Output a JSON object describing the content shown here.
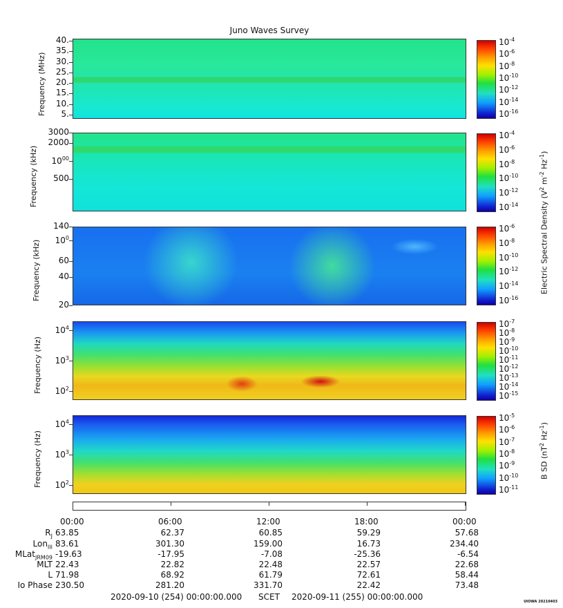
{
  "chart_data": {
    "type": "heatmap",
    "title": "Juno Waves Survey",
    "panels": [
      {
        "id": "p1",
        "ylabel": "Frequency (MHz)",
        "yscale": "linear",
        "ylim": [
          3,
          41
        ],
        "yticks": [
          "40.",
          "35.",
          "30.",
          "25.",
          "20.",
          "15.",
          "10.",
          "5."
        ],
        "ytick_values": [
          40,
          35,
          30,
          25,
          20,
          15,
          10,
          5
        ],
        "colorbar": {
          "label": "",
          "ticks": [
            "10-4",
            "10-6",
            "10-8",
            "10-10",
            "10-12",
            "10-14",
            "10-16"
          ],
          "exponents": [
            -4,
            -6,
            -8,
            -10,
            -12,
            -14,
            -16
          ]
        }
      },
      {
        "id": "p2",
        "ylabel": "Frequency (kHz)",
        "yscale": "log",
        "ylim": [
          140,
          3000
        ],
        "yticks": [
          "3000",
          "2000",
          "1000",
          "500"
        ],
        "ytick_values": [
          3000,
          2000,
          1000,
          500
        ],
        "colorbar": {
          "label": "Electric Spectral Density (V2 m-2 Hz-1)",
          "ticks": [
            "10-4",
            "10-6",
            "10-8",
            "10-10",
            "10-12",
            "10-14"
          ],
          "exponents": [
            -4,
            -6,
            -8,
            -10,
            -12,
            -14
          ]
        }
      },
      {
        "id": "p3",
        "ylabel": "Frequency (kHz)",
        "yscale": "log",
        "ylim": [
          20,
          140
        ],
        "yticks": [
          "140",
          "100",
          "60",
          "40",
          "20"
        ],
        "ytick_values": [
          140,
          100,
          60,
          40,
          20
        ],
        "colorbar": {
          "label": "",
          "ticks": [
            "10-6",
            "10-8",
            "10-10",
            "10-12",
            "10-14",
            "10-16"
          ],
          "exponents": [
            -6,
            -8,
            -10,
            -12,
            -14,
            -16
          ]
        }
      },
      {
        "id": "p4",
        "ylabel": "Frequency (Hz)",
        "yscale": "log",
        "ylim": [
          50,
          20000
        ],
        "yticks": [
          "104",
          "103",
          "102"
        ],
        "ytick_values": [
          10000,
          1000,
          100
        ],
        "colorbar": {
          "label": "",
          "ticks": [
            "10-7",
            "10-8",
            "10-9",
            "10-10",
            "10-11",
            "10-12",
            "10-13",
            "10-14",
            "10-15"
          ],
          "exponents": [
            -7,
            -8,
            -9,
            -10,
            -11,
            -12,
            -13,
            -14,
            -15
          ]
        }
      },
      {
        "id": "p5",
        "ylabel": "Frequency (Hz)",
        "yscale": "log",
        "ylim": [
          50,
          20000
        ],
        "yticks": [
          "104",
          "103",
          "102"
        ],
        "ytick_values": [
          10000,
          1000,
          100
        ],
        "colorbar": {
          "label": "B SD (nT2 Hz-1)",
          "ticks": [
            "10-5",
            "10-6",
            "10-7",
            "10-8",
            "10-9",
            "10-10",
            "10-11"
          ],
          "exponents": [
            -5,
            -6,
            -7,
            -8,
            -9,
            -10,
            -11
          ]
        }
      }
    ],
    "x_ticks": [
      "00:00",
      "06:00",
      "12:00",
      "18:00",
      "00:00"
    ],
    "ephemeris": {
      "rows": [
        {
          "label": "Rj",
          "values": [
            "63.85",
            "62.37",
            "60.85",
            "59.29",
            "57.68"
          ]
        },
        {
          "label": "LonIII",
          "values": [
            "83.61",
            "301.30",
            "159.00",
            "16.73",
            "234.40"
          ]
        },
        {
          "label": "MLatJRM09",
          "values": [
            "-19.63",
            "-17.95",
            "-7.08",
            "-25.36",
            "-6.54"
          ]
        },
        {
          "label": "MLT",
          "values": [
            "22.43",
            "22.82",
            "22.48",
            "22.57",
            "22.68"
          ]
        },
        {
          "label": "L",
          "values": [
            "71.98",
            "68.92",
            "61.79",
            "72.61",
            "58.44"
          ]
        },
        {
          "label": "Io Phase",
          "values": [
            "230.50",
            "281.20",
            "331.70",
            "22.42",
            "73.48"
          ]
        }
      ]
    }
  },
  "footer": {
    "start": "2020-09-10 (254) 00:00:00.000",
    "middle": "SCET",
    "end": "2020-09-11 (255) 00:00:00.000"
  },
  "stamp": "UIOWA 20210403",
  "colors": {
    "axis": "#333333",
    "bg": "#ffffff"
  }
}
